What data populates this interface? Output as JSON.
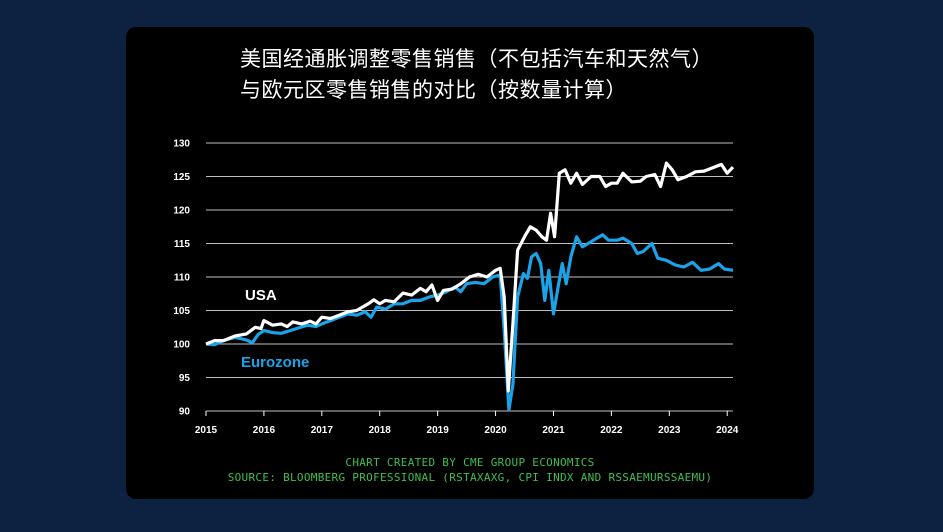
{
  "chart_data": {
    "type": "line",
    "title": "美国经通胀调整零售销售（不包括汽车和天然气）与欧元区零售销售的对比（按数量计算）",
    "xlabel": "",
    "ylabel": "",
    "xlim": [
      2015,
      2024.1
    ],
    "ylim": [
      90,
      130
    ],
    "yticks": [
      90,
      95,
      100,
      105,
      110,
      115,
      120,
      125,
      130
    ],
    "xticks": [
      "2015",
      "2016",
      "2017",
      "2018",
      "2019",
      "2020",
      "2021",
      "2022",
      "2023",
      "2024"
    ],
    "grid": "horizontal",
    "series": [
      {
        "name": "USA",
        "color": "#ffffff",
        "points": [
          [
            2015.0,
            100.0
          ],
          [
            2015.15,
            100.5
          ],
          [
            2015.3,
            100.5
          ],
          [
            2015.5,
            101.2
          ],
          [
            2015.7,
            101.5
          ],
          [
            2015.85,
            102.5
          ],
          [
            2015.95,
            102.3
          ],
          [
            2016.0,
            103.5
          ],
          [
            2016.15,
            102.8
          ],
          [
            2016.3,
            103.0
          ],
          [
            2016.4,
            102.6
          ],
          [
            2016.5,
            103.3
          ],
          [
            2016.65,
            103.0
          ],
          [
            2016.8,
            103.4
          ],
          [
            2016.9,
            103.0
          ],
          [
            2017.0,
            104.0
          ],
          [
            2017.15,
            103.8
          ],
          [
            2017.3,
            104.3
          ],
          [
            2017.45,
            104.8
          ],
          [
            2017.6,
            105.0
          ],
          [
            2017.7,
            105.5
          ],
          [
            2017.8,
            106.0
          ],
          [
            2017.9,
            106.6
          ],
          [
            2018.0,
            106.0
          ],
          [
            2018.1,
            106.5
          ],
          [
            2018.25,
            106.3
          ],
          [
            2018.4,
            107.6
          ],
          [
            2018.55,
            107.3
          ],
          [
            2018.7,
            108.3
          ],
          [
            2018.8,
            107.8
          ],
          [
            2018.9,
            108.8
          ],
          [
            2019.0,
            106.5
          ],
          [
            2019.1,
            108.0
          ],
          [
            2019.25,
            108.2
          ],
          [
            2019.4,
            109.0
          ],
          [
            2019.55,
            110.0
          ],
          [
            2019.7,
            110.4
          ],
          [
            2019.85,
            110.0
          ],
          [
            2020.0,
            111.0
          ],
          [
            2020.08,
            111.3
          ],
          [
            2020.15,
            107.0
          ],
          [
            2020.22,
            93.0
          ],
          [
            2020.3,
            103.0
          ],
          [
            2020.38,
            114.0
          ],
          [
            2020.5,
            116.0
          ],
          [
            2020.6,
            117.5
          ],
          [
            2020.7,
            117.0
          ],
          [
            2020.8,
            116.0
          ],
          [
            2020.88,
            115.5
          ],
          [
            2020.95,
            119.5
          ],
          [
            2021.02,
            116.0
          ],
          [
            2021.1,
            125.5
          ],
          [
            2021.2,
            126.0
          ],
          [
            2021.3,
            124.0
          ],
          [
            2021.4,
            125.5
          ],
          [
            2021.5,
            123.8
          ],
          [
            2021.65,
            125.0
          ],
          [
            2021.8,
            125.0
          ],
          [
            2021.9,
            123.5
          ],
          [
            2022.0,
            124.0
          ],
          [
            2022.1,
            124.0
          ],
          [
            2022.2,
            125.5
          ],
          [
            2022.35,
            124.2
          ],
          [
            2022.5,
            124.3
          ],
          [
            2022.6,
            125.0
          ],
          [
            2022.75,
            125.3
          ],
          [
            2022.85,
            123.5
          ],
          [
            2022.95,
            127.0
          ],
          [
            2023.05,
            126.0
          ],
          [
            2023.15,
            124.5
          ],
          [
            2023.3,
            125.0
          ],
          [
            2023.45,
            125.7
          ],
          [
            2023.6,
            125.8
          ],
          [
            2023.75,
            126.3
          ],
          [
            2023.9,
            126.8
          ],
          [
            2024.0,
            125.5
          ],
          [
            2024.1,
            126.4
          ]
        ]
      },
      {
        "name": "Eurozone",
        "color": "#1aa3e8",
        "points": [
          [
            2015.0,
            100.0
          ],
          [
            2015.15,
            99.9
          ],
          [
            2015.3,
            100.5
          ],
          [
            2015.5,
            101.0
          ],
          [
            2015.7,
            100.6
          ],
          [
            2015.8,
            100.2
          ],
          [
            2015.9,
            101.4
          ],
          [
            2016.0,
            102.0
          ],
          [
            2016.15,
            101.7
          ],
          [
            2016.3,
            101.6
          ],
          [
            2016.45,
            102.0
          ],
          [
            2016.6,
            102.4
          ],
          [
            2016.75,
            102.8
          ],
          [
            2016.9,
            102.6
          ],
          [
            2017.0,
            103.0
          ],
          [
            2017.15,
            103.5
          ],
          [
            2017.3,
            104.0
          ],
          [
            2017.45,
            104.5
          ],
          [
            2017.6,
            104.3
          ],
          [
            2017.75,
            104.8
          ],
          [
            2017.85,
            104.0
          ],
          [
            2017.95,
            105.5
          ],
          [
            2018.1,
            105.2
          ],
          [
            2018.25,
            106.0
          ],
          [
            2018.4,
            106.0
          ],
          [
            2018.55,
            106.5
          ],
          [
            2018.7,
            106.5
          ],
          [
            2018.85,
            107.0
          ],
          [
            2019.0,
            107.3
          ],
          [
            2019.15,
            107.8
          ],
          [
            2019.3,
            108.5
          ],
          [
            2019.4,
            107.8
          ],
          [
            2019.5,
            109.0
          ],
          [
            2019.65,
            109.2
          ],
          [
            2019.8,
            109.0
          ],
          [
            2019.95,
            110.0
          ],
          [
            2020.08,
            110.3
          ],
          [
            2020.15,
            102.0
          ],
          [
            2020.23,
            90.2
          ],
          [
            2020.3,
            94.0
          ],
          [
            2020.38,
            107.0
          ],
          [
            2020.48,
            110.5
          ],
          [
            2020.55,
            109.8
          ],
          [
            2020.62,
            113.0
          ],
          [
            2020.7,
            113.5
          ],
          [
            2020.78,
            112.0
          ],
          [
            2020.85,
            106.5
          ],
          [
            2020.92,
            111.0
          ],
          [
            2021.0,
            104.5
          ],
          [
            2021.08,
            108.5
          ],
          [
            2021.15,
            112.0
          ],
          [
            2021.22,
            109.0
          ],
          [
            2021.3,
            113.0
          ],
          [
            2021.4,
            116.0
          ],
          [
            2021.5,
            114.5
          ],
          [
            2021.6,
            115.0
          ],
          [
            2021.75,
            115.8
          ],
          [
            2021.85,
            116.3
          ],
          [
            2021.95,
            115.5
          ],
          [
            2022.1,
            115.5
          ],
          [
            2022.2,
            115.8
          ],
          [
            2022.35,
            115.0
          ],
          [
            2022.45,
            113.5
          ],
          [
            2022.55,
            113.8
          ],
          [
            2022.7,
            115.0
          ],
          [
            2022.8,
            112.8
          ],
          [
            2022.95,
            112.5
          ],
          [
            2023.1,
            111.8
          ],
          [
            2023.25,
            111.5
          ],
          [
            2023.4,
            112.2
          ],
          [
            2023.55,
            111.0
          ],
          [
            2023.7,
            111.2
          ],
          [
            2023.85,
            112.0
          ],
          [
            2023.95,
            111.2
          ],
          [
            2024.1,
            111.0
          ]
        ]
      }
    ]
  },
  "credit": "CHART CREATED BY CME GROUP ECONOMICS",
  "source": "SOURCE: BLOOMBERG PROFESSIONAL (RSTAXAXG, CPI INDX AND RSSAEMURSSAEMU)"
}
